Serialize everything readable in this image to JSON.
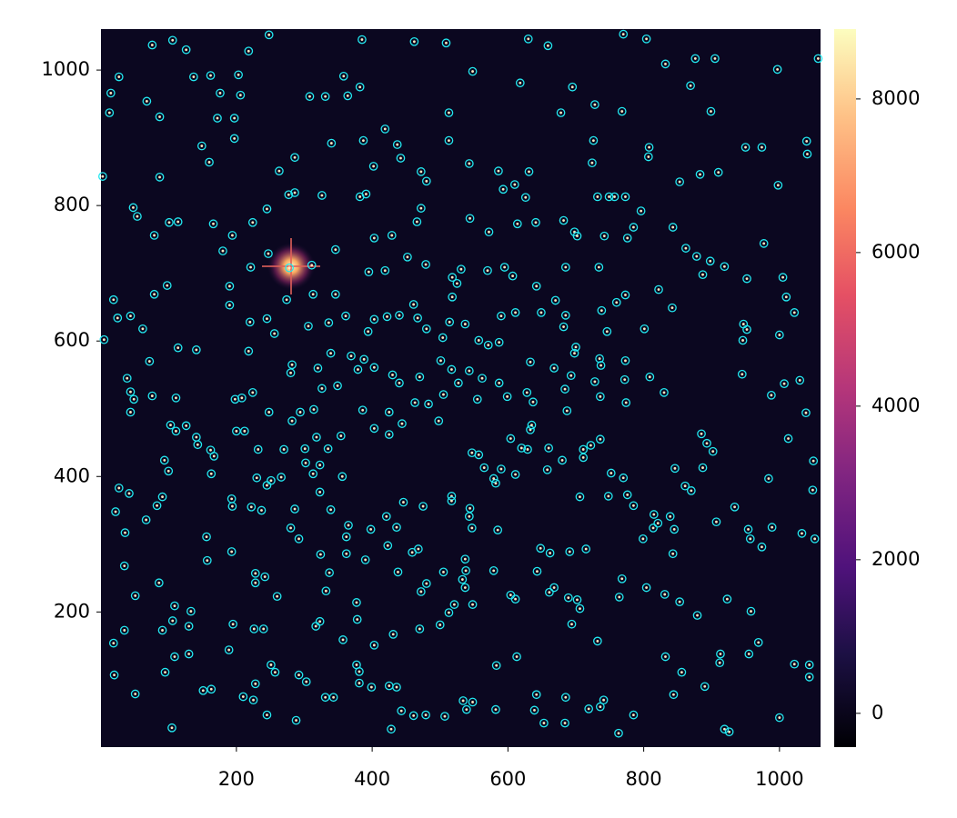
{
  "chart_data": {
    "type": "scatter",
    "xlim": [
      0.5,
      1060.5
    ],
    "ylim": [
      0.5,
      1060.5
    ],
    "xticks": [
      200,
      400,
      600,
      800,
      1000
    ],
    "yticks": [
      200,
      400,
      600,
      800,
      1000
    ],
    "color": "#22e8f0",
    "colorbar": {
      "lim": [
        -440,
        8910
      ],
      "ticks": [
        0,
        2000,
        4000,
        6000,
        8000
      ]
    },
    "x": [
      15,
      13,
      27,
      68,
      87,
      76,
      106,
      126,
      137,
      162,
      176,
      206,
      203,
      197,
      172,
      218,
      248,
      308,
      331,
      364,
      358,
      385,
      382,
      419,
      462,
      509,
      548,
      513,
      618,
      630,
      659,
      695,
      678,
      728,
      768,
      770,
      804,
      832,
      876,
      905,
      997,
      1057,
      869,
      899,
      1040,
      1041,
      950,
      974,
      3,
      87,
      149,
      160,
      197,
      263,
      286,
      340,
      387,
      402,
      437,
      442,
      472,
      480,
      513,
      543,
      586,
      593,
      610,
      631,
      626,
      724,
      726,
      808,
      807,
      853,
      883,
      910,
      998,
      48,
      54,
      79,
      101,
      114,
      166,
      194,
      224,
      245,
      277,
      286,
      326,
      382,
      391,
      466,
      472,
      544,
      572,
      614,
      641,
      682,
      698,
      732,
      749,
      757,
      773,
      776,
      785,
      796,
      843,
      862,
      878,
      887,
      898,
      919,
      977,
      952,
      1005,
      1010,
      1022,
      180,
      221,
      247,
      278,
      311,
      346,
      395,
      403,
      429,
      419,
      452,
      479,
      518,
      531,
      525,
      570,
      595,
      607,
      642,
      685,
      702,
      734,
      742,
      738,
      760,
      773,
      822,
      842,
      19,
      25,
      44,
      62,
      79,
      98,
      72,
      114,
      141,
      190,
      190,
      220,
      245,
      218,
      256,
      274,
      306,
      336,
      313,
      346,
      361,
      339,
      369,
      388,
      394,
      403,
      422,
      440,
      461,
      467,
      480,
      504,
      514,
      518,
      537,
      557,
      571,
      587,
      590,
      611,
      649,
      670,
      685,
      682,
      700,
      735,
      773,
      746,
      801,
      947,
      952,
      5,
      39,
      44,
      49,
      44,
      76,
      111,
      103,
      126,
      141,
      162,
      198,
      208,
      224,
      248,
      212,
      200,
      232,
      270,
      282,
      294,
      314,
      326,
      349,
      280,
      282,
      320,
      379,
      403,
      430,
      440,
      470,
      501,
      517,
      527,
      505,
      498,
      483,
      463,
      444,
      425,
      386,
      403,
      425,
      354,
      335,
      318,
      301,
      302,
      323,
      313,
      323,
      339,
      356,
      245,
      266,
      230,
      193,
      194,
      163,
      167,
      143,
      111,
      94,
      100,
      27,
      42,
      91,
      67,
      83,
      22,
      36,
      35,
      51,
      86,
      109,
      106,
      91,
      133,
      130,
      35,
      19,
      20,
      51,
      105,
      109,
      130,
      95,
      151,
      163,
      157,
      156,
      193,
      222,
      237,
      251,
      280,
      286,
      292,
      324,
      337,
      332,
      317,
      323,
      357,
      378,
      377,
      362,
      362,
      365,
      398,
      390,
      403,
      431,
      470,
      500,
      513,
      521,
      548,
      537,
      538,
      533,
      537,
      505,
      480,
      472,
      438,
      423,
      421,
      436,
      459,
      468,
      446,
      475,
      517,
      517,
      544,
      543,
      547,
      579,
      585,
      611,
      604,
      547,
      557,
      565,
      590,
      611,
      582,
      579,
      620,
      604,
      629,
      633,
      658,
      660,
      680,
      711,
      711,
      722,
      736,
      706,
      748,
      752,
      770,
      776,
      785,
      815,
      814,
      821,
      799,
      839,
      846,
      845,
      843,
      887,
      907,
      934,
      954,
      957,
      974,
      989,
      1033,
      1052,
      1049,
      1050,
      1013,
      984,
      870,
      861,
      902,
      893,
      885,
      946,
      988,
      1007,
      1039,
      1030,
      1000,
      945,
      830,
      809,
      772,
      774,
      736,
      728,
      737,
      698,
      684,
      693,
      687,
      637,
      628,
      635,
      668,
      633,
      599,
      587,
      555,
      562,
      543,
      648,
      691,
      715,
      662,
      643,
      668,
      661,
      689,
      706,
      702,
      694,
      732,
      768,
      764,
      804,
      831,
      853,
      879,
      923,
      958,
      969,
      955,
      913,
      912,
      832,
      856,
      844,
      890,
      1022,
      1044,
      1044,
      1000,
      919,
      926,
      785,
      763,
      741,
      736,
      719,
      685,
      684,
      653,
      639,
      642,
      613,
      583,
      548,
      582,
      534,
      539,
      507,
      479,
      461,
      443,
      428,
      436,
      425,
      399,
      381,
      381,
      377,
      343,
      331,
      303,
      292,
      251,
      257,
      228,
      225,
      210,
      245,
      288,
      189,
      226,
      240,
      260,
      195,
      228,
      228,
      242
    ],
    "values": [
      966,
      937,
      990,
      954,
      931,
      1037,
      1044,
      1030,
      990,
      992,
      966,
      963,
      993,
      929,
      929,
      1028,
      1052,
      961,
      961,
      962,
      991,
      1045,
      975,
      913,
      1042,
      1040,
      998,
      937,
      981,
      1046,
      1036,
      975,
      937,
      949,
      939,
      1053,
      1046,
      1009,
      1017,
      1017,
      1001,
      1017,
      977,
      939,
      895,
      876,
      886,
      886,
      843,
      842,
      888,
      864,
      899,
      851,
      871,
      892,
      896,
      858,
      890,
      870,
      850,
      836,
      896,
      862,
      851,
      824,
      831,
      850,
      812,
      863,
      896,
      886,
      872,
      835,
      846,
      849,
      830,
      797,
      784,
      756,
      775,
      776,
      773,
      756,
      775,
      795,
      816,
      819,
      815,
      813,
      817,
      776,
      796,
      781,
      761,
      773,
      775,
      778,
      761,
      813,
      813,
      813,
      813,
      752,
      768,
      792,
      768,
      737,
      725,
      698,
      718,
      710,
      744,
      692,
      694,
      665,
      642,
      733,
      709,
      729,
      708,
      712,
      735,
      702,
      752,
      756,
      704,
      724,
      713,
      694,
      706,
      685,
      704,
      709,
      696,
      681,
      709,
      755,
      709,
      755,
      645,
      657,
      668,
      676,
      649,
      661,
      634,
      637,
      618,
      669,
      682,
      570,
      590,
      587,
      653,
      681,
      628,
      633,
      585,
      611,
      661,
      622,
      627,
      669,
      669,
      637,
      582,
      578,
      573,
      614,
      632,
      636,
      638,
      654,
      634,
      618,
      605,
      628,
      665,
      625,
      601,
      594,
      598,
      637,
      642,
      642,
      660,
      638,
      621,
      591,
      574,
      571,
      614,
      618,
      625,
      617,
      602,
      545,
      525,
      514,
      495,
      519,
      516,
      476,
      475,
      458,
      439,
      514,
      516,
      524,
      495,
      467,
      467,
      440,
      440,
      482,
      495,
      499,
      530,
      534,
      553,
      565,
      560,
      558,
      561,
      550,
      538,
      547,
      571,
      558,
      538,
      521,
      482,
      507,
      509,
      478,
      495,
      498,
      471,
      462,
      460,
      441,
      458,
      441,
      420,
      417,
      404,
      377,
      351,
      400,
      387,
      399,
      398,
      367,
      356,
      404,
      430,
      447,
      467,
      424,
      408,
      383,
      375,
      370,
      336,
      357,
      348,
      317,
      268,
      224,
      243,
      209,
      187,
      173,
      201,
      179,
      173,
      154,
      107,
      79,
      29,
      134,
      138,
      111,
      84,
      86,
      276,
      311,
      289,
      355,
      350,
      394,
      324,
      352,
      308,
      285,
      258,
      231,
      179,
      186,
      159,
      189,
      214,
      286,
      311,
      328,
      322,
      277,
      151,
      167,
      175,
      181,
      199,
      211,
      211,
      278,
      261,
      248,
      236,
      259,
      242,
      230,
      259,
      298,
      341,
      325,
      288,
      293,
      362,
      356,
      371,
      364,
      353,
      341,
      324,
      261,
      321,
      219,
      225,
      435,
      432,
      413,
      411,
      403,
      390,
      397,
      442,
      456,
      440,
      469,
      410,
      442,
      424,
      440,
      428,
      446,
      455,
      370,
      371,
      405,
      398,
      373,
      357,
      344,
      324,
      331,
      308,
      341,
      412,
      322,
      286,
      413,
      333,
      355,
      322,
      308,
      296,
      325,
      316,
      308,
      380,
      423,
      456,
      397,
      379,
      386,
      437,
      449,
      463,
      601,
      520,
      537,
      494,
      542,
      609,
      551,
      524,
      547,
      543,
      509,
      518,
      540,
      564,
      582,
      529,
      549,
      497,
      510,
      524,
      476,
      560,
      569,
      518,
      538,
      514,
      545,
      556,
      294,
      289,
      293,
      287,
      260,
      236,
      229,
      221,
      205,
      218,
      182,
      157,
      249,
      222,
      236,
      226,
      215,
      195,
      219,
      201,
      155,
      138,
      138,
      125,
      134,
      111,
      78,
      90,
      123,
      122,
      104,
      44,
      27,
      23,
      48,
      21,
      70,
      60,
      57,
      74,
      36,
      36,
      55,
      78,
      134,
      121,
      67,
      56,
      69,
      56,
      46,
      48,
      47,
      54,
      27,
      89,
      91,
      89,
      95,
      112,
      122,
      74,
      74,
      97,
      107,
      122,
      111,
      94,
      70,
      75,
      48,
      40,
      144,
      175,
      175,
      223,
      182,
      243,
      257,
      252
    ]
  }
}
